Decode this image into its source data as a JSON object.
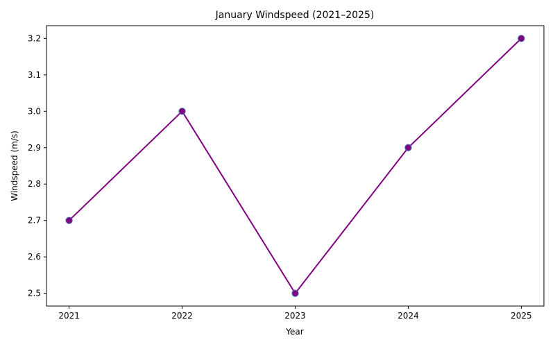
{
  "chart_data": {
    "type": "line",
    "title": "January Windspeed (2021–2025)",
    "xlabel": "Year",
    "ylabel": "Windspeed (m/s)",
    "categories": [
      "2021",
      "2022",
      "2023",
      "2024",
      "2025"
    ],
    "series": [
      {
        "values": [
          2.7,
          3.0,
          2.5,
          2.9,
          3.2
        ],
        "line_color": "#800080",
        "marker_face_color": "#800080",
        "marker_edge_color": "#4a5fa8"
      }
    ],
    "yticks": [
      "2.5",
      "2.6",
      "2.7",
      "2.8",
      "2.9",
      "3.0",
      "3.1",
      "3.2"
    ],
    "ylim": [
      2.465,
      3.235
    ],
    "grid": false,
    "legend": "none",
    "marker": "circle"
  }
}
